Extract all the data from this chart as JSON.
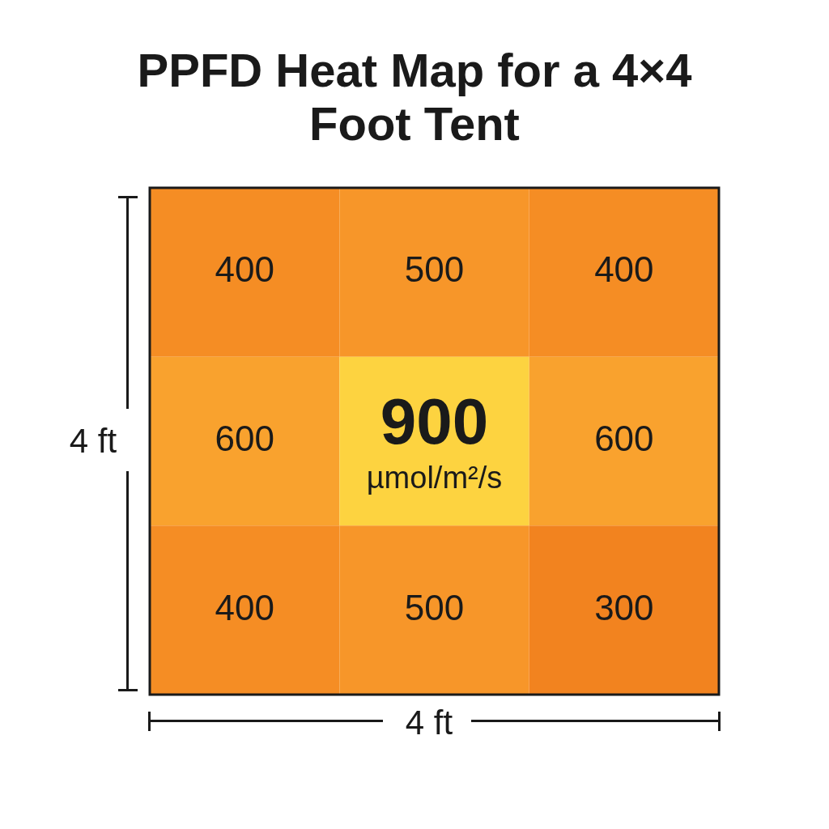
{
  "chart_data": {
    "type": "heatmap",
    "title": "PPFD Heat Map for a 4×4 Foot Tent",
    "xlabel": "4 ft",
    "ylabel": "4 ft",
    "categories": [
      null,
      null,
      null
    ],
    "y_categories": [
      null,
      null,
      null
    ],
    "cells": [
      [
        400,
        500,
        400
      ],
      [
        600,
        900,
        600
      ],
      [
        400,
        500,
        300
      ]
    ],
    "cell_labels": [
      [
        "400",
        "500",
        "400"
      ],
      [
        "600",
        "900\nµmol/m²/s",
        "600"
      ],
      [
        "400",
        "500",
        "300"
      ]
    ]
  }
}
